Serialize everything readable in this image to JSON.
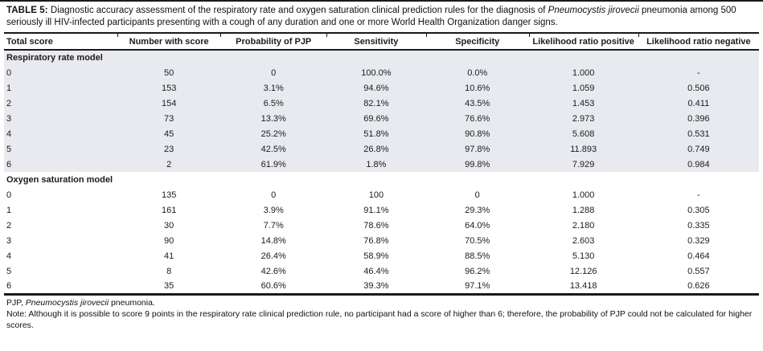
{
  "page": {
    "title": {
      "label": "TABLE 5:",
      "pre_italic": " Diagnostic accuracy assessment of the respiratory rate and oxygen saturation clinical prediction rules for the diagnosis of ",
      "italic": "Pneumocystis jirovecii",
      "post_italic": " pneumonia among 500 seriously ill HIV-infected participants presenting with a cough of any duration and one or more World Health Organization danger signs."
    },
    "table": {
      "columns": [
        "Total score",
        "Number with score",
        "Probability of PJP",
        "Sensitivity",
        "Specificity",
        "Likelihood ratio positive",
        "Likelihood ratio negative"
      ],
      "sections": [
        {
          "label": "Respiratory rate model",
          "shaded": true,
          "rows": [
            [
              "0",
              "50",
              "0",
              "100.0%",
              "0.0%",
              "1.000",
              "-"
            ],
            [
              "1",
              "153",
              "3.1%",
              "94.6%",
              "10.6%",
              "1.059",
              "0.506"
            ],
            [
              "2",
              "154",
              "6.5%",
              "82.1%",
              "43.5%",
              "1.453",
              "0.411"
            ],
            [
              "3",
              "73",
              "13.3%",
              "69.6%",
              "76.6%",
              "2.973",
              "0.396"
            ],
            [
              "4",
              "45",
              "25.2%",
              "51.8%",
              "90.8%",
              "5.608",
              "0.531"
            ],
            [
              "5",
              "23",
              "42.5%",
              "26.8%",
              "97.8%",
              "11.893",
              "0.749"
            ],
            [
              "6",
              "2",
              "61.9%",
              "1.8%",
              "99.8%",
              "7.929",
              "0.984"
            ]
          ]
        },
        {
          "label": "Oxygen saturation model",
          "shaded": false,
          "rows": [
            [
              "0",
              "135",
              "0",
              "100",
              "0",
              "1.000",
              "-"
            ],
            [
              "1",
              "161",
              "3.9%",
              "91.1%",
              "29.3%",
              "1.288",
              "0.305"
            ],
            [
              "2",
              "30",
              "7.7%",
              "78.6%",
              "64.0%",
              "2.180",
              "0.335"
            ],
            [
              "3",
              "90",
              "14.8%",
              "76.8%",
              "70.5%",
              "2.603",
              "0.329"
            ],
            [
              "4",
              "41",
              "26.4%",
              "58.9%",
              "88.5%",
              "5.130",
              "0.464"
            ],
            [
              "5",
              "8",
              "42.6%",
              "46.4%",
              "96.2%",
              "12.126",
              "0.557"
            ],
            [
              "6",
              "35",
              "60.6%",
              "39.3%",
              "97.1%",
              "13.418",
              "0.626"
            ]
          ]
        }
      ]
    },
    "footnotes": {
      "abbrev_pre": "PJP, ",
      "abbrev_italic": "Pneumocystis jirovecii",
      "abbrev_post": " pneumonia.",
      "note": "Note: Although it is possible to score 9 points in the respiratory rate clinical prediction rule, no participant had a score of higher than 6; therefore, the probability of PJP could not be calculated for higher scores."
    },
    "colors": {
      "section_shade": "#e8eaef",
      "rule": "#1a1a1a"
    }
  }
}
